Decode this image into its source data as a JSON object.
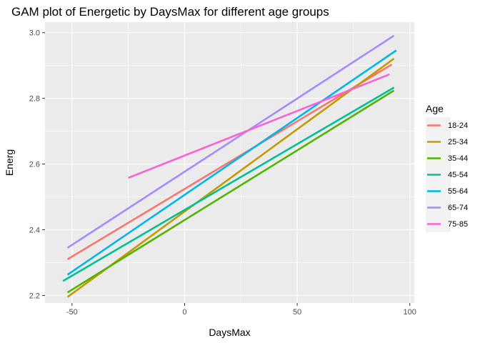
{
  "chart_data": {
    "type": "line",
    "title": "GAM plot of Energetic by DaysMax for different age groups",
    "xlabel": "DaysMax",
    "ylabel": "Energ",
    "xlim": [
      -62,
      102
    ],
    "ylim": [
      2.177,
      3.032
    ],
    "x_ticks": [
      -50,
      0,
      50,
      100
    ],
    "y_ticks": [
      2.2,
      2.4,
      2.6,
      2.8,
      3.0
    ],
    "x_tick_labels": [
      "-50",
      "0",
      "50",
      "100"
    ],
    "y_tick_labels": [
      "2.2",
      "2.4",
      "2.6",
      "2.8",
      "3.0"
    ],
    "grid": true,
    "legend": {
      "title": "Age",
      "position": "right"
    },
    "series": [
      {
        "name": "18-24",
        "color": "#F8766D",
        "x": [
          -52,
          92
        ],
        "y": [
          2.31,
          2.903
        ]
      },
      {
        "name": "25-34",
        "color": "#C49A00",
        "x": [
          -52,
          93
        ],
        "y": [
          2.195,
          2.921
        ]
      },
      {
        "name": "35-44",
        "color": "#53B400",
        "x": [
          -52,
          93
        ],
        "y": [
          2.209,
          2.824
        ]
      },
      {
        "name": "45-54",
        "color": "#00C094",
        "x": [
          -54,
          93
        ],
        "y": [
          2.244,
          2.833
        ]
      },
      {
        "name": "55-64",
        "color": "#00B6EB",
        "x": [
          -52,
          94
        ],
        "y": [
          2.263,
          2.946
        ]
      },
      {
        "name": "65-74",
        "color": "#A58AFF",
        "x": [
          -52,
          93
        ],
        "y": [
          2.345,
          2.991
        ]
      },
      {
        "name": "75-85",
        "color": "#FB61D7",
        "x": [
          -25,
          91
        ],
        "y": [
          2.558,
          2.873
        ]
      }
    ]
  }
}
